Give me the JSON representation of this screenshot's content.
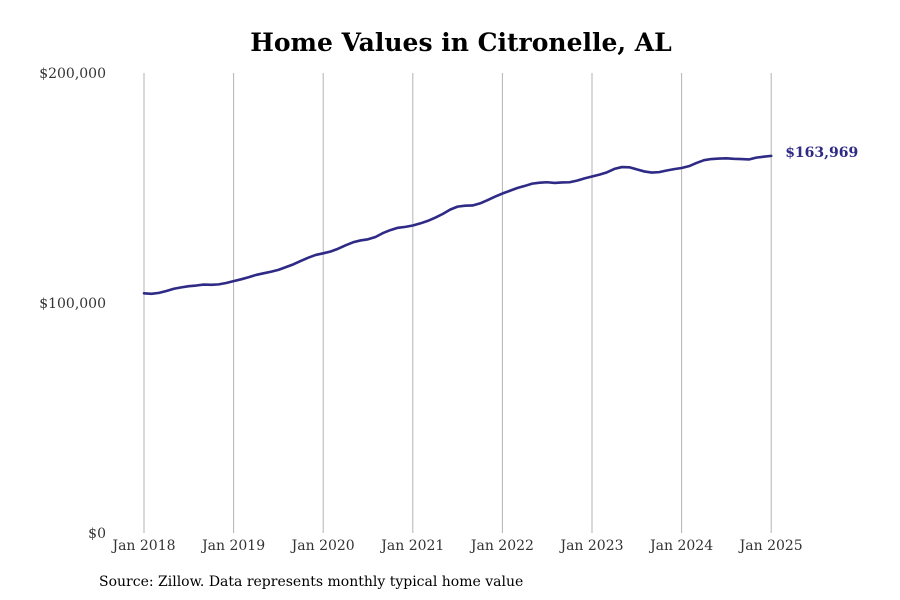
{
  "chart_data": {
    "type": "line",
    "title": "Home Values in Citronelle, AL",
    "xlabel": "",
    "ylabel": "",
    "x_ticks": [
      "Jan 2018",
      "Jan 2019",
      "Jan 2020",
      "Jan 2021",
      "Jan 2022",
      "Jan 2023",
      "Jan 2024",
      "Jan 2025"
    ],
    "y_ticks": [
      "$0",
      "$100,000",
      "$200,000"
    ],
    "y_tick_values": [
      0,
      100000,
      200000
    ],
    "ylim": [
      0,
      200000
    ],
    "xlim": [
      "2018-01",
      "2025-02"
    ],
    "grid": "vertical lines at year ticks",
    "line_color": "#2e2a85",
    "series": [
      {
        "points": [
          [
            "2018-01",
            104200
          ],
          [
            "2018-02",
            104000
          ],
          [
            "2018-03",
            104400
          ],
          [
            "2018-04",
            105200
          ],
          [
            "2018-05",
            106200
          ],
          [
            "2018-06",
            106800
          ],
          [
            "2018-07",
            107300
          ],
          [
            "2018-08",
            107600
          ],
          [
            "2018-09",
            108000
          ],
          [
            "2018-10",
            107900
          ],
          [
            "2018-11",
            108100
          ],
          [
            "2018-12",
            108700
          ],
          [
            "2019-01",
            109500
          ],
          [
            "2019-02",
            110300
          ],
          [
            "2019-03",
            111200
          ],
          [
            "2019-04",
            112200
          ],
          [
            "2019-05",
            112900
          ],
          [
            "2019-06",
            113600
          ],
          [
            "2019-07",
            114400
          ],
          [
            "2019-08",
            115600
          ],
          [
            "2019-09",
            116800
          ],
          [
            "2019-10",
            118300
          ],
          [
            "2019-11",
            119700
          ],
          [
            "2019-12",
            120900
          ],
          [
            "2020-01",
            121600
          ],
          [
            "2020-02",
            122400
          ],
          [
            "2020-03",
            123600
          ],
          [
            "2020-04",
            125100
          ],
          [
            "2020-05",
            126400
          ],
          [
            "2020-06",
            127200
          ],
          [
            "2020-07",
            127700
          ],
          [
            "2020-08",
            128700
          ],
          [
            "2020-09",
            130400
          ],
          [
            "2020-10",
            131700
          ],
          [
            "2020-11",
            132700
          ],
          [
            "2020-12",
            133100
          ],
          [
            "2021-01",
            133700
          ],
          [
            "2021-02",
            134600
          ],
          [
            "2021-03",
            135700
          ],
          [
            "2021-04",
            137100
          ],
          [
            "2021-05",
            138700
          ],
          [
            "2021-06",
            140600
          ],
          [
            "2021-07",
            141900
          ],
          [
            "2021-08",
            142300
          ],
          [
            "2021-09",
            142400
          ],
          [
            "2021-10",
            143300
          ],
          [
            "2021-11",
            144700
          ],
          [
            "2021-12",
            146200
          ],
          [
            "2022-01",
            147600
          ],
          [
            "2022-02",
            148800
          ],
          [
            "2022-03",
            150000
          ],
          [
            "2022-04",
            150900
          ],
          [
            "2022-05",
            151900
          ],
          [
            "2022-06",
            152300
          ],
          [
            "2022-07",
            152500
          ],
          [
            "2022-08",
            152200
          ],
          [
            "2022-09",
            152400
          ],
          [
            "2022-10",
            152500
          ],
          [
            "2022-11",
            153200
          ],
          [
            "2022-12",
            154200
          ],
          [
            "2023-01",
            155000
          ],
          [
            "2023-02",
            155800
          ],
          [
            "2023-03",
            156800
          ],
          [
            "2023-04",
            158300
          ],
          [
            "2023-05",
            159100
          ],
          [
            "2023-06",
            159000
          ],
          [
            "2023-07",
            158100
          ],
          [
            "2023-08",
            157200
          ],
          [
            "2023-09",
            156700
          ],
          [
            "2023-10",
            156900
          ],
          [
            "2023-11",
            157600
          ],
          [
            "2023-12",
            158200
          ],
          [
            "2024-01",
            158700
          ],
          [
            "2024-02",
            159500
          ],
          [
            "2024-03",
            160900
          ],
          [
            "2024-04",
            162100
          ],
          [
            "2024-05",
            162600
          ],
          [
            "2024-06",
            162800
          ],
          [
            "2024-07",
            162900
          ],
          [
            "2024-08",
            162700
          ],
          [
            "2024-09",
            162600
          ],
          [
            "2024-10",
            162400
          ],
          [
            "2024-11",
            163200
          ],
          [
            "2024-12",
            163600
          ],
          [
            "2025-01",
            163969
          ]
        ]
      }
    ],
    "end_label": "$163,969"
  },
  "source": "Source: Zillow. Data represents monthly typical home value"
}
